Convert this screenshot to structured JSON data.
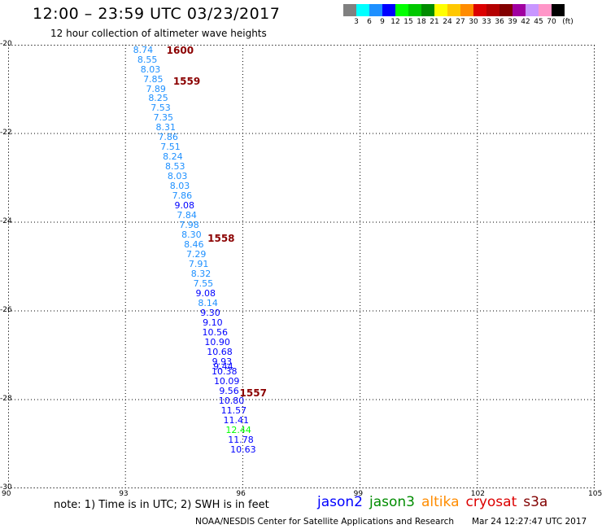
{
  "header": {
    "title": "12:00 – 23:59 UTC 03/23/2017",
    "subtitle": "12 hour collection of altimeter wave heights"
  },
  "colorbar": {
    "colors": [
      "#808080",
      "#00ffff",
      "#1e90ff",
      "#0000ff",
      "#00ff00",
      "#00c800",
      "#008c00",
      "#ffff00",
      "#ffc800",
      "#ff8c00",
      "#dc0000",
      "#b40000",
      "#820000",
      "#a000a0",
      "#c896ff",
      "#ff96c8",
      "#000000"
    ],
    "labels": [
      "3",
      "6",
      "9",
      "12",
      "15",
      "18",
      "21",
      "24",
      "27",
      "30",
      "33",
      "36",
      "39",
      "42",
      "45",
      "70",
      "(ft)"
    ]
  },
  "map": {
    "lon_ticks": [
      "90",
      "93",
      "96",
      "99",
      "102",
      "105"
    ],
    "lat_ticks": [
      "-20",
      "-22",
      "-24",
      "-26",
      "-28",
      "-30"
    ],
    "lon_range": [
      90,
      105
    ],
    "lat_range": [
      -20,
      -30
    ],
    "points": [
      {
        "lon": 93.45,
        "lat": -20.12,
        "v": "8.74",
        "c": "#1e90ff"
      },
      {
        "lon": 93.56,
        "lat": -20.34,
        "v": "8.55",
        "c": "#1e90ff"
      },
      {
        "lon": 93.64,
        "lat": -20.56,
        "v": "8.03",
        "c": "#1e90ff"
      },
      {
        "lon": 93.71,
        "lat": -20.78,
        "v": "7.85",
        "c": "#1e90ff"
      },
      {
        "lon": 93.78,
        "lat": -21.0,
        "v": "7.89",
        "c": "#1e90ff"
      },
      {
        "lon": 93.84,
        "lat": -21.22,
        "v": "8.25",
        "c": "#1e90ff"
      },
      {
        "lon": 93.9,
        "lat": -21.44,
        "v": "7.53",
        "c": "#1e90ff"
      },
      {
        "lon": 93.97,
        "lat": -21.66,
        "v": "7.35",
        "c": "#1e90ff"
      },
      {
        "lon": 94.03,
        "lat": -21.88,
        "v": "8.31",
        "c": "#1e90ff"
      },
      {
        "lon": 94.09,
        "lat": -22.1,
        "v": "7.86",
        "c": "#1e90ff"
      },
      {
        "lon": 94.15,
        "lat": -22.32,
        "v": "7.51",
        "c": "#1e90ff"
      },
      {
        "lon": 94.21,
        "lat": -22.54,
        "v": "8.24",
        "c": "#1e90ff"
      },
      {
        "lon": 94.27,
        "lat": -22.76,
        "v": "8.53",
        "c": "#1e90ff"
      },
      {
        "lon": 94.33,
        "lat": -22.98,
        "v": "8.03",
        "c": "#1e90ff"
      },
      {
        "lon": 94.39,
        "lat": -23.2,
        "v": "8.03",
        "c": "#1e90ff"
      },
      {
        "lon": 94.45,
        "lat": -23.42,
        "v": "7.86",
        "c": "#1e90ff"
      },
      {
        "lon": 94.51,
        "lat": -23.64,
        "v": "9.08",
        "c": "#0000ff"
      },
      {
        "lon": 94.57,
        "lat": -23.86,
        "v": "7.84",
        "c": "#1e90ff"
      },
      {
        "lon": 94.63,
        "lat": -24.08,
        "v": "7.98",
        "c": "#1e90ff"
      },
      {
        "lon": 94.69,
        "lat": -24.3,
        "v": "8.30",
        "c": "#1e90ff"
      },
      {
        "lon": 94.75,
        "lat": -24.52,
        "v": "8.46",
        "c": "#1e90ff"
      },
      {
        "lon": 94.81,
        "lat": -24.74,
        "v": "7.29",
        "c": "#1e90ff"
      },
      {
        "lon": 94.87,
        "lat": -24.96,
        "v": "7.91",
        "c": "#1e90ff"
      },
      {
        "lon": 94.93,
        "lat": -25.18,
        "v": "8.32",
        "c": "#1e90ff"
      },
      {
        "lon": 94.99,
        "lat": -25.4,
        "v": "7.55",
        "c": "#1e90ff"
      },
      {
        "lon": 95.05,
        "lat": -25.62,
        "v": "9.08",
        "c": "#0000ff"
      },
      {
        "lon": 95.11,
        "lat": -25.84,
        "v": "8.14",
        "c": "#1e90ff"
      },
      {
        "lon": 95.17,
        "lat": -26.06,
        "v": "9.30",
        "c": "#0000ff"
      },
      {
        "lon": 95.23,
        "lat": -26.28,
        "v": "9.10",
        "c": "#0000ff"
      },
      {
        "lon": 95.29,
        "lat": -26.5,
        "v": "10.56",
        "c": "#0000ff"
      },
      {
        "lon": 95.35,
        "lat": -26.72,
        "v": "10.90",
        "c": "#0000ff"
      },
      {
        "lon": 95.41,
        "lat": -26.94,
        "v": "10.68",
        "c": "#0000ff"
      },
      {
        "lon": 95.47,
        "lat": -27.16,
        "v": "9.93",
        "c": "#0000ff"
      },
      {
        "lon": 95.5,
        "lat": -27.27,
        "v": "9.44",
        "c": "#0000ff"
      },
      {
        "lon": 95.53,
        "lat": -27.38,
        "v": "10.38",
        "c": "#0000ff"
      },
      {
        "lon": 95.59,
        "lat": -27.6,
        "v": "10.09",
        "c": "#0000ff"
      },
      {
        "lon": 95.65,
        "lat": -27.82,
        "v": "9.56",
        "c": "#0000ff"
      },
      {
        "lon": 95.71,
        "lat": -28.04,
        "v": "10.80",
        "c": "#0000ff"
      },
      {
        "lon": 95.77,
        "lat": -28.26,
        "v": "11.57",
        "c": "#0000ff"
      },
      {
        "lon": 95.83,
        "lat": -28.48,
        "v": "11.41",
        "c": "#0000ff"
      },
      {
        "lon": 95.89,
        "lat": -28.7,
        "v": "12.44",
        "c": "#00ff00"
      },
      {
        "lon": 95.95,
        "lat": -28.92,
        "v": "11.78",
        "c": "#0000ff"
      },
      {
        "lon": 96.01,
        "lat": -29.14,
        "v": "10.63",
        "c": "#0000ff"
      }
    ],
    "time_labels": [
      {
        "lon": 94.05,
        "lat": -20.12,
        "t": "1600"
      },
      {
        "lon": 94.22,
        "lat": -20.82,
        "t": "1559"
      },
      {
        "lon": 95.1,
        "lat": -24.36,
        "t": "1558"
      },
      {
        "lon": 95.92,
        "lat": -27.85,
        "t": "1557"
      }
    ]
  },
  "note": "note: 1) Time is in UTC; 2) SWH is in feet",
  "legend": [
    {
      "name": "jason2",
      "color": "#0000ff"
    },
    {
      "name": "jason3",
      "color": "#008c00"
    },
    {
      "name": "altika",
      "color": "#ff8c00"
    },
    {
      "name": "cryosat",
      "color": "#dc0000"
    },
    {
      "name": "s3a",
      "color": "#820000"
    }
  ],
  "footer": "NOAA/NESDIS Center for Satellite Applications and Research",
  "timestamp": "Mar 24 12:27:47 UTC 2017"
}
